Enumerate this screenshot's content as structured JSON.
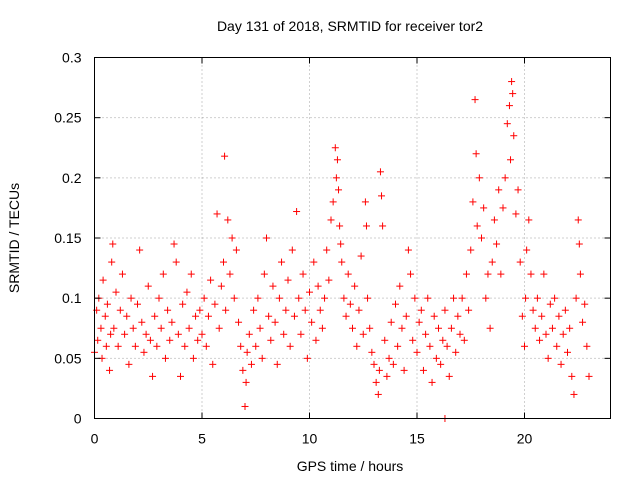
{
  "chart_data": {
    "type": "scatter",
    "title": "Day 131 of 2018, SRMTID for receiver tor2",
    "xlabel": "GPS time / hours",
    "ylabel": "SRMTID / TECUs",
    "xlim": [
      0,
      24
    ],
    "ylim": [
      0,
      0.3
    ],
    "xticks": [
      0,
      5,
      10,
      15,
      20
    ],
    "xtick_labels": [
      "0",
      "5",
      "10",
      "15",
      "20"
    ],
    "yticks": [
      0,
      0.05,
      0.1,
      0.15,
      0.2,
      0.25,
      0.3
    ],
    "ytick_labels": [
      "0",
      "0.05",
      "0.1",
      "0.15",
      "0.2",
      "0.25",
      "0.3"
    ],
    "grid": true,
    "marker": "+",
    "series": [
      {
        "name": "SRMTID",
        "color": "#ff0000",
        "points": [
          [
            0.0,
            0.055
          ],
          [
            0.1,
            0.09
          ],
          [
            0.15,
            0.065
          ],
          [
            0.2,
            0.1
          ],
          [
            0.3,
            0.075
          ],
          [
            0.35,
            0.05
          ],
          [
            0.4,
            0.115
          ],
          [
            0.5,
            0.085
          ],
          [
            0.55,
            0.06
          ],
          [
            0.6,
            0.095
          ],
          [
            0.7,
            0.04
          ],
          [
            0.75,
            0.07
          ],
          [
            0.8,
            0.13
          ],
          [
            0.85,
            0.145
          ],
          [
            0.9,
            0.075
          ],
          [
            1.0,
            0.105
          ],
          [
            1.1,
            0.06
          ],
          [
            1.2,
            0.09
          ],
          [
            1.3,
            0.12
          ],
          [
            1.4,
            0.07
          ],
          [
            1.5,
            0.085
          ],
          [
            1.6,
            0.045
          ],
          [
            1.7,
            0.1
          ],
          [
            1.8,
            0.075
          ],
          [
            1.9,
            0.06
          ],
          [
            2.0,
            0.095
          ],
          [
            2.1,
            0.14
          ],
          [
            2.2,
            0.08
          ],
          [
            2.3,
            0.055
          ],
          [
            2.4,
            0.07
          ],
          [
            2.5,
            0.11
          ],
          [
            2.6,
            0.065
          ],
          [
            2.7,
            0.035
          ],
          [
            2.8,
            0.085
          ],
          [
            2.9,
            0.06
          ],
          [
            3.0,
            0.1
          ],
          [
            3.1,
            0.075
          ],
          [
            3.2,
            0.12
          ],
          [
            3.3,
            0.05
          ],
          [
            3.4,
            0.09
          ],
          [
            3.5,
            0.065
          ],
          [
            3.6,
            0.08
          ],
          [
            3.7,
            0.145
          ],
          [
            3.8,
            0.13
          ],
          [
            3.9,
            0.07
          ],
          [
            4.0,
            0.035
          ],
          [
            4.1,
            0.095
          ],
          [
            4.2,
            0.06
          ],
          [
            4.3,
            0.105
          ],
          [
            4.4,
            0.075
          ],
          [
            4.5,
            0.12
          ],
          [
            4.6,
            0.05
          ],
          [
            4.7,
            0.085
          ],
          [
            4.8,
            0.065
          ],
          [
            4.9,
            0.09
          ],
          [
            5.0,
            0.07
          ],
          [
            5.1,
            0.1
          ],
          [
            5.2,
            0.06
          ],
          [
            5.3,
            0.085
          ],
          [
            5.4,
            0.115
          ],
          [
            5.5,
            0.045
          ],
          [
            5.6,
            0.095
          ],
          [
            5.7,
            0.17
          ],
          [
            5.8,
            0.075
          ],
          [
            5.9,
            0.11
          ],
          [
            6.0,
            0.13
          ],
          [
            6.05,
            0.218
          ],
          [
            6.1,
            0.09
          ],
          [
            6.2,
            0.165
          ],
          [
            6.3,
            0.12
          ],
          [
            6.4,
            0.15
          ],
          [
            6.5,
            0.1
          ],
          [
            6.6,
            0.14
          ],
          [
            6.7,
            0.08
          ],
          [
            6.8,
            0.06
          ],
          [
            6.9,
            0.04
          ],
          [
            7.0,
            0.01
          ],
          [
            7.05,
            0.03
          ],
          [
            7.1,
            0.055
          ],
          [
            7.2,
            0.07
          ],
          [
            7.3,
            0.045
          ],
          [
            7.4,
            0.09
          ],
          [
            7.5,
            0.06
          ],
          [
            7.6,
            0.1
          ],
          [
            7.7,
            0.075
          ],
          [
            7.8,
            0.05
          ],
          [
            7.9,
            0.12
          ],
          [
            8.0,
            0.15
          ],
          [
            8.1,
            0.085
          ],
          [
            8.2,
            0.065
          ],
          [
            8.3,
            0.11
          ],
          [
            8.4,
            0.08
          ],
          [
            8.5,
            0.045
          ],
          [
            8.6,
            0.1
          ],
          [
            8.7,
            0.13
          ],
          [
            8.8,
            0.07
          ],
          [
            8.9,
            0.09
          ],
          [
            9.0,
            0.115
          ],
          [
            9.1,
            0.06
          ],
          [
            9.2,
            0.14
          ],
          [
            9.3,
            0.085
          ],
          [
            9.4,
            0.172
          ],
          [
            9.5,
            0.1
          ],
          [
            9.6,
            0.07
          ],
          [
            9.7,
            0.12
          ],
          [
            9.8,
            0.09
          ],
          [
            9.9,
            0.05
          ],
          [
            10.0,
            0.105
          ],
          [
            10.1,
            0.08
          ],
          [
            10.2,
            0.13
          ],
          [
            10.3,
            0.065
          ],
          [
            10.4,
            0.11
          ],
          [
            10.5,
            0.09
          ],
          [
            10.6,
            0.075
          ],
          [
            10.7,
            0.1
          ],
          [
            10.8,
            0.14
          ],
          [
            10.9,
            0.115
          ],
          [
            11.0,
            0.165
          ],
          [
            11.1,
            0.18
          ],
          [
            11.2,
            0.225
          ],
          [
            11.25,
            0.2
          ],
          [
            11.3,
            0.215
          ],
          [
            11.35,
            0.19
          ],
          [
            11.4,
            0.16
          ],
          [
            11.45,
            0.145
          ],
          [
            11.5,
            0.13
          ],
          [
            11.6,
            0.1
          ],
          [
            11.7,
            0.085
          ],
          [
            11.8,
            0.12
          ],
          [
            11.9,
            0.095
          ],
          [
            12.0,
            0.075
          ],
          [
            12.1,
            0.11
          ],
          [
            12.2,
            0.06
          ],
          [
            12.3,
            0.09
          ],
          [
            12.4,
            0.135
          ],
          [
            12.5,
            0.07
          ],
          [
            12.6,
            0.18
          ],
          [
            12.65,
            0.16
          ],
          [
            12.7,
            0.1
          ],
          [
            12.8,
            0.075
          ],
          [
            12.9,
            0.055
          ],
          [
            13.0,
            0.045
          ],
          [
            13.1,
            0.03
          ],
          [
            13.2,
            0.02
          ],
          [
            13.25,
            0.04
          ],
          [
            13.3,
            0.205
          ],
          [
            13.35,
            0.185
          ],
          [
            13.4,
            0.16
          ],
          [
            13.5,
            0.065
          ],
          [
            13.6,
            0.035
          ],
          [
            13.7,
            0.05
          ],
          [
            13.8,
            0.08
          ],
          [
            13.9,
            0.045
          ],
          [
            14.0,
            0.095
          ],
          [
            14.1,
            0.06
          ],
          [
            14.2,
            0.11
          ],
          [
            14.3,
            0.075
          ],
          [
            14.4,
            0.04
          ],
          [
            14.5,
            0.085
          ],
          [
            14.6,
            0.14
          ],
          [
            14.7,
            0.12
          ],
          [
            14.8,
            0.065
          ],
          [
            14.9,
            0.1
          ],
          [
            15.0,
            0.055
          ],
          [
            15.1,
            0.08
          ],
          [
            15.2,
            0.09
          ],
          [
            15.3,
            0.04
          ],
          [
            15.4,
            0.07
          ],
          [
            15.5,
            0.1
          ],
          [
            15.6,
            0.06
          ],
          [
            15.7,
            0.03
          ],
          [
            15.8,
            0.085
          ],
          [
            15.9,
            0.05
          ],
          [
            16.0,
            0.075
          ],
          [
            16.1,
            0.045
          ],
          [
            16.2,
            0.065
          ],
          [
            16.3,
            0.09
          ],
          [
            16.4,
            0.06
          ],
          [
            16.5,
            0.035
          ],
          [
            16.6,
            0.075
          ],
          [
            16.7,
            0.1
          ],
          [
            16.8,
            0.055
          ],
          [
            16.9,
            0.085
          ],
          [
            17.0,
            0.07
          ],
          [
            17.1,
            0.1
          ],
          [
            17.2,
            0.065
          ],
          [
            17.3,
            0.12
          ],
          [
            17.4,
            0.09
          ],
          [
            17.5,
            0.14
          ],
          [
            17.6,
            0.18
          ],
          [
            17.7,
            0.265
          ],
          [
            17.75,
            0.22
          ],
          [
            17.8,
            0.16
          ],
          [
            17.9,
            0.2
          ],
          [
            18.0,
            0.15
          ],
          [
            18.1,
            0.175
          ],
          [
            18.2,
            0.1
          ],
          [
            18.3,
            0.12
          ],
          [
            18.4,
            0.075
          ],
          [
            18.5,
            0.13
          ],
          [
            18.6,
            0.165
          ],
          [
            18.7,
            0.145
          ],
          [
            18.8,
            0.19
          ],
          [
            18.9,
            0.12
          ],
          [
            19.0,
            0.175
          ],
          [
            19.1,
            0.2
          ],
          [
            19.2,
            0.245
          ],
          [
            19.3,
            0.26
          ],
          [
            19.35,
            0.215
          ],
          [
            19.4,
            0.28
          ],
          [
            19.45,
            0.27
          ],
          [
            19.5,
            0.235
          ],
          [
            19.6,
            0.17
          ],
          [
            19.7,
            0.19
          ],
          [
            19.8,
            0.13
          ],
          [
            19.9,
            0.085
          ],
          [
            20.0,
            0.06
          ],
          [
            20.05,
            0.1
          ],
          [
            20.1,
            0.14
          ],
          [
            20.2,
            0.165
          ],
          [
            20.3,
            0.12
          ],
          [
            20.4,
            0.09
          ],
          [
            20.5,
            0.075
          ],
          [
            20.6,
            0.1
          ],
          [
            20.7,
            0.065
          ],
          [
            20.8,
            0.085
          ],
          [
            20.9,
            0.12
          ],
          [
            21.0,
            0.07
          ],
          [
            21.1,
            0.05
          ],
          [
            21.2,
            0.095
          ],
          [
            21.3,
            0.075
          ],
          [
            21.4,
            0.1
          ],
          [
            21.5,
            0.06
          ],
          [
            21.6,
            0.085
          ],
          [
            21.7,
            0.045
          ],
          [
            21.8,
            0.07
          ],
          [
            21.9,
            0.09
          ],
          [
            22.0,
            0.055
          ],
          [
            22.1,
            0.075
          ],
          [
            22.2,
            0.035
          ],
          [
            22.3,
            0.02
          ],
          [
            22.4,
            0.1
          ],
          [
            22.5,
            0.165
          ],
          [
            22.55,
            0.145
          ],
          [
            22.6,
            0.12
          ],
          [
            22.7,
            0.08
          ],
          [
            22.8,
            0.095
          ],
          [
            22.9,
            0.06
          ],
          [
            23.0,
            0.035
          ],
          [
            16.3,
            0.0
          ]
        ]
      }
    ]
  }
}
